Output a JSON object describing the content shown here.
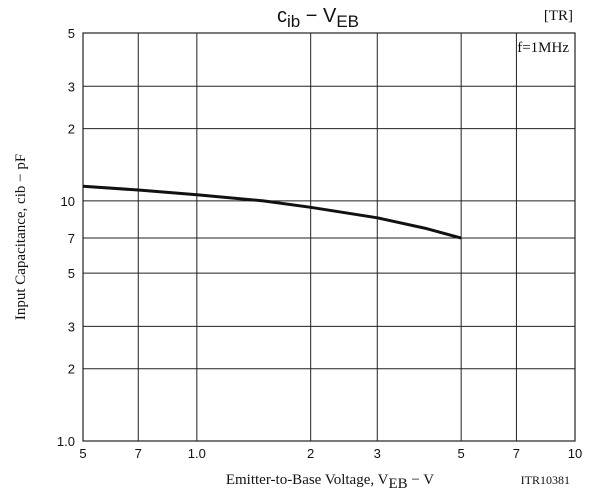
{
  "chart_data": {
    "type": "line",
    "title": [
      "c",
      "ib",
      " − V",
      "EB"
    ],
    "x_label": [
      "Emitter-to-Base Voltage, V",
      "EB",
      " − V"
    ],
    "y_label": "Input Capacitance, cib − pF",
    "annotations": [
      "[TR]",
      "f=1MHz",
      "ITR10381"
    ],
    "x_scale": "log",
    "y_scale": "log",
    "grid": true,
    "xlim": [
      0.5,
      10
    ],
    "ylim": [
      1,
      50
    ],
    "xticks": [
      {
        "value": 0.5,
        "label": "5"
      },
      {
        "value": 0.7,
        "label": "7"
      },
      {
        "value": 1,
        "label": "1.0"
      },
      2,
      3,
      5,
      7,
      10
    ],
    "yticks": [
      {
        "value": 1,
        "label": "1.0"
      },
      2,
      3,
      5,
      7,
      10,
      {
        "value": 20,
        "label": "2"
      },
      {
        "value": 30,
        "label": "3"
      },
      {
        "value": 50,
        "label": "5"
      }
    ],
    "series": [
      {
        "color": "#111111",
        "x": [
          0.5,
          0.7,
          1,
          1.5,
          2,
          3,
          4,
          5
        ],
        "values": [
          11.5,
          11.1,
          10.6,
          10.0,
          9.4,
          8.5,
          7.7,
          7.0
        ]
      }
    ]
  }
}
